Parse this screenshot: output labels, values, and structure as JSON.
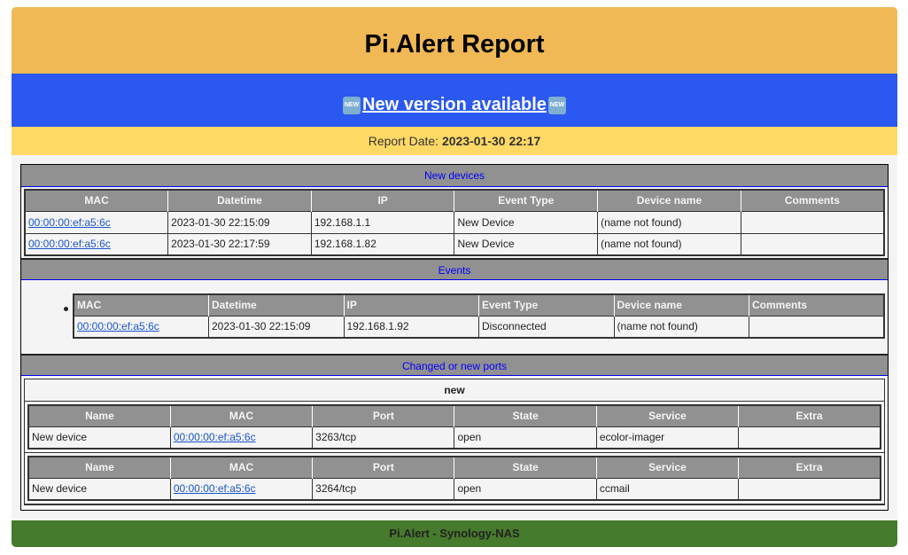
{
  "header": {
    "title": "Pi.Alert Report"
  },
  "banner": {
    "text": "New version available",
    "badge": "NEW"
  },
  "report": {
    "label": "Report Date: ",
    "date": "2023-01-30 22:17"
  },
  "new_devices": {
    "title": "New devices",
    "columns": [
      "MAC",
      "Datetime",
      "IP",
      "Event Type",
      "Device name",
      "Comments"
    ],
    "rows": [
      [
        "00:00:00:ef:a5:6c",
        "2023-01-30 22:15:09",
        "192.168.1.1",
        "New Device",
        "(name not found)",
        ""
      ],
      [
        "00:00:00:ef:a5:6c",
        "2023-01-30 22:17:59",
        "192.168.1.82",
        "New Device",
        "(name not found)",
        ""
      ]
    ]
  },
  "events": {
    "title": "Events",
    "columns": [
      "MAC",
      "Datetime",
      "IP",
      "Event Type",
      "Device name",
      "Comments"
    ],
    "rows": [
      [
        "00:00:00:ef:a5:6c",
        "2023-01-30 22:15:09",
        "192.168.1.92",
        "Disconnected",
        "(name not found)",
        ""
      ]
    ]
  },
  "ports": {
    "title": "Changed or new ports",
    "group": "new",
    "columns": [
      "Name",
      "MAC",
      "Port",
      "State",
      "Service",
      "Extra"
    ],
    "tables": [
      [
        [
          "New device",
          "00:00:00:ef:a5:6c",
          "3263/tcp",
          "open",
          "ecolor-imager",
          ""
        ]
      ],
      [
        [
          "New device",
          "00:00:00:ef:a5:6c",
          "3264/tcp",
          "open",
          "ccmail",
          ""
        ]
      ]
    ]
  },
  "footer": {
    "text": "Pi.Alert - Synology-NAS"
  }
}
